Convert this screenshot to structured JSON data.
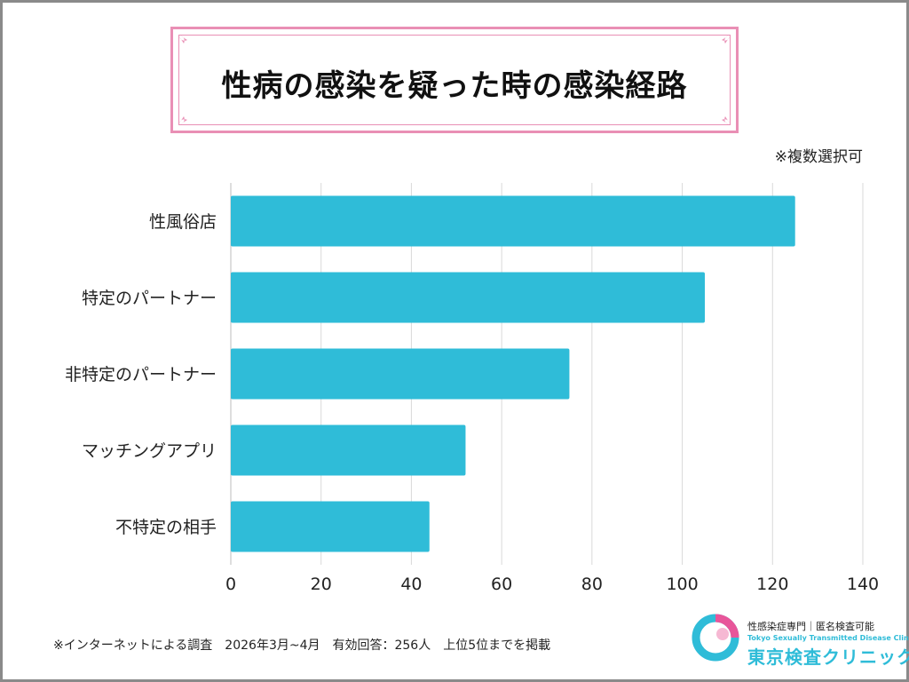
{
  "title": "性病の感染を疑った時の感染経路",
  "note": "※複数選択可",
  "colors": {
    "bar": "#2fbcd8",
    "frame_pink": "#e98fb5",
    "grid": "#d9d9d9",
    "border": "#8a8a8a",
    "logo_pink": "#e8559a",
    "logo_cyan": "#2fbcd8"
  },
  "chart_data": {
    "type": "bar",
    "orientation": "horizontal",
    "categories": [
      "性風俗店",
      "特定のパートナー",
      "非特定のパートナー",
      "マッチングアプリ",
      "不特定の相手"
    ],
    "values": [
      125,
      105,
      75,
      52,
      44
    ],
    "xlim": [
      0,
      140
    ],
    "xticks": [
      0,
      20,
      40,
      60,
      80,
      100,
      120,
      140
    ],
    "xlabel": "",
    "ylabel": "",
    "grid": "vertical",
    "legend": "none"
  },
  "footnote": "※インターネットによる調査　2026年3月~4月　有効回答：256人　上位5位までを掲載",
  "logo": {
    "tagline": "性感染症専門｜匿名検査可能",
    "name_en": "Tokyo Sexually Transmitted Disease Clinic",
    "name_jp": "東京検査クリニック",
    "icon": "clinic-logo-icon"
  }
}
